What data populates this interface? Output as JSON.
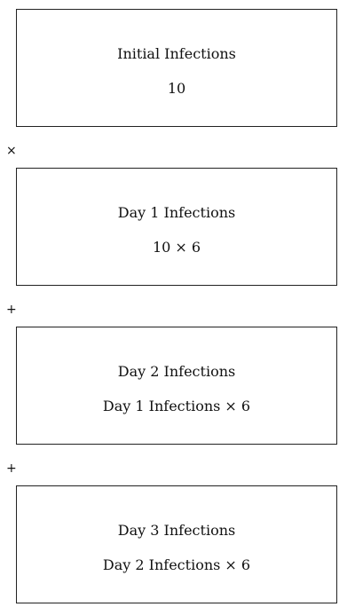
{
  "boxes": [
    {
      "title": "Initial Infections",
      "formula": "10"
    },
    {
      "title": "Day 1 Infections",
      "formula": "10 × 6"
    },
    {
      "title": "Day 2 Infections",
      "formula": "Day 1 Infections × 6"
    },
    {
      "title": "Day 3 Infections",
      "formula": "Day 2 Infections × 6"
    }
  ],
  "operators": [
    "×",
    "+",
    "+"
  ]
}
